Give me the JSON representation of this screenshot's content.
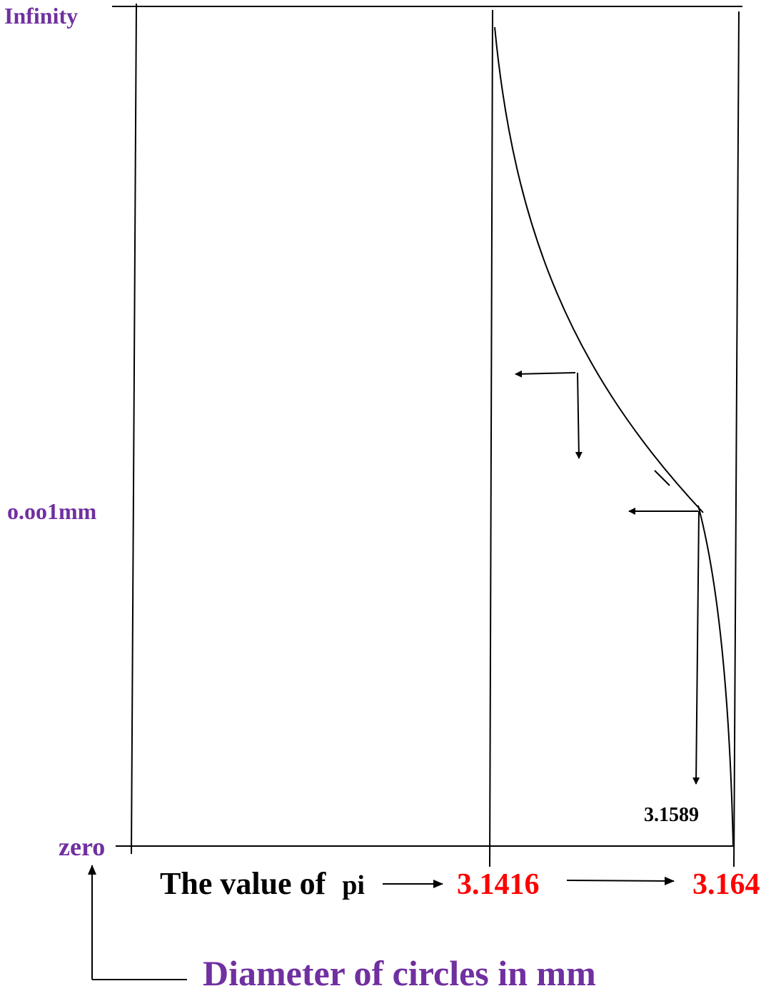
{
  "labels": {
    "top": "Infinity",
    "middle": "o.oo1mm",
    "bottom": "zero",
    "pi_text": "The value of",
    "pi_word": "pi",
    "value_left": "3.1416",
    "value_right": "3.164",
    "annotation": "3.1589",
    "axis_caption": "Diameter of circles in mm"
  },
  "colors": {
    "axis_labels": "#7030a0",
    "values": "#ff0000",
    "lines": "#000000"
  }
}
